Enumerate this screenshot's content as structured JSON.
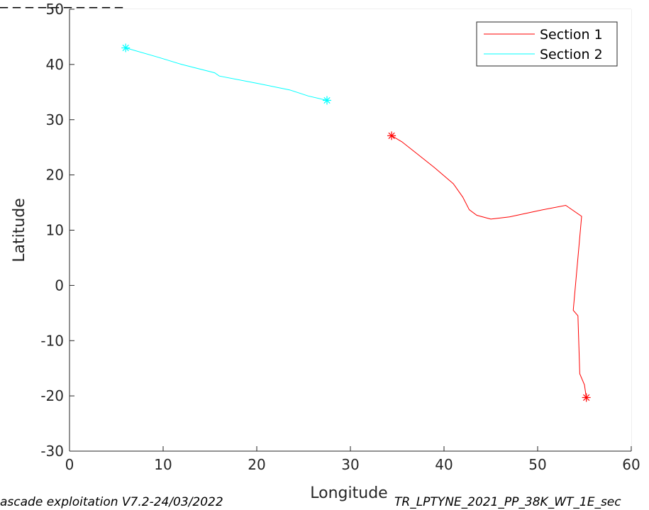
{
  "chart_data": {
    "type": "line",
    "xlabel": "Longitude",
    "ylabel": "Latitude",
    "xlim": [
      0,
      60
    ],
    "ylim": [
      -30,
      50
    ],
    "x_ticks": [
      "0",
      "10",
      "20",
      "30",
      "40",
      "50",
      "60"
    ],
    "y_ticks": [
      "-30",
      "-20",
      "-10",
      "0",
      "10",
      "20",
      "30",
      "40",
      "50"
    ],
    "grid": true,
    "legend_placement": "top-right",
    "series": [
      {
        "name": "Section 1",
        "color": "#ff0000",
        "points": [
          [
            34.4,
            27.1
          ],
          [
            35.5,
            26.0
          ],
          [
            37.0,
            24.0
          ],
          [
            39.0,
            21.3
          ],
          [
            41.0,
            18.4
          ],
          [
            42.0,
            16.0
          ],
          [
            42.7,
            13.7
          ],
          [
            43.5,
            12.7
          ],
          [
            45.0,
            12.0
          ],
          [
            47.0,
            12.4
          ],
          [
            50.0,
            13.5
          ],
          [
            53.0,
            14.5
          ],
          [
            54.7,
            12.5
          ],
          [
            54.3,
            5.0
          ],
          [
            53.8,
            -4.5
          ],
          [
            54.3,
            -5.5
          ],
          [
            54.5,
            -16.0
          ],
          [
            55.0,
            -18.0
          ],
          [
            55.2,
            -20.3
          ]
        ],
        "markers": [
          [
            34.4,
            27.1
          ],
          [
            55.2,
            -20.3
          ]
        ]
      },
      {
        "name": "Section 2",
        "color": "#00ffff",
        "points": [
          [
            6.0,
            43.0
          ],
          [
            9.5,
            41.3
          ],
          [
            12.0,
            40.0
          ],
          [
            15.5,
            38.5
          ],
          [
            16.0,
            37.9
          ],
          [
            20.0,
            36.6
          ],
          [
            23.5,
            35.4
          ],
          [
            25.5,
            34.3
          ],
          [
            27.5,
            33.5
          ]
        ],
        "markers": [
          [
            6.0,
            43.0
          ],
          [
            27.5,
            33.5
          ]
        ]
      }
    ]
  },
  "title_fragment": "_ _ _ _ _ _ _ _ _ _",
  "footer": {
    "left": "ascade exploitation V7.2-24/03/2022",
    "right": "TR_LPTYNE_2021_PP_38K_WT_1E_sec"
  }
}
